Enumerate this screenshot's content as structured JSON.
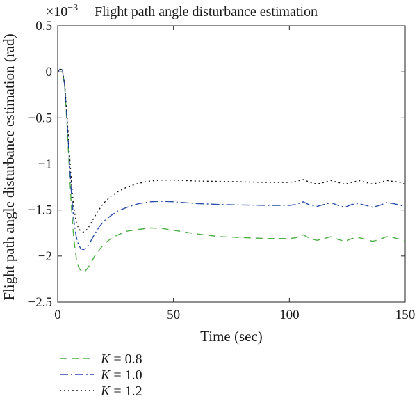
{
  "chart_data": {
    "type": "line",
    "title": "Flight path angle disturbance estimation",
    "exponent_label": "×10",
    "exponent_power": "−3",
    "xlabel": "Time (sec)",
    "ylabel": "Flight path angle disturbance estimation (rad)",
    "xlim": [
      0,
      150
    ],
    "ylim": [
      -2.5,
      0.5
    ],
    "xticks": [
      0,
      50,
      100,
      150
    ],
    "xtick_labels": [
      "0",
      "50",
      "100",
      "150"
    ],
    "yticks": [
      0.5,
      0,
      -0.5,
      -1,
      -1.5,
      -2,
      -2.5
    ],
    "ytick_labels": [
      "0.5",
      "0",
      "−0.5",
      "−1",
      "−1.5",
      "−2",
      "−2.5"
    ],
    "grid": false,
    "legend_position": "below",
    "series": [
      {
        "name": "K = 0.8",
        "legend_var": "K",
        "legend_value": "= 0.8",
        "color": "#4cae43",
        "dash": "10,7",
        "x": [
          0,
          1,
          2,
          3,
          4,
          5,
          6,
          7,
          8,
          9,
          10,
          11,
          12,
          13,
          14,
          16,
          18,
          20,
          23,
          26,
          30,
          35,
          40,
          45,
          50,
          55,
          60,
          70,
          80,
          90,
          100,
          103,
          106,
          109,
          112,
          115,
          118,
          121,
          124,
          127,
          130,
          133,
          136,
          139,
          142,
          145,
          148,
          150
        ],
        "y": [
          0,
          0.03,
          0.02,
          -0.15,
          -0.55,
          -1.05,
          -1.5,
          -1.82,
          -2.02,
          -2.12,
          -2.16,
          -2.17,
          -2.16,
          -2.13,
          -2.09,
          -2.0,
          -1.93,
          -1.87,
          -1.81,
          -1.77,
          -1.73,
          -1.71,
          -1.695,
          -1.7,
          -1.72,
          -1.74,
          -1.76,
          -1.79,
          -1.8,
          -1.81,
          -1.81,
          -1.8,
          -1.77,
          -1.81,
          -1.83,
          -1.81,
          -1.79,
          -1.82,
          -1.84,
          -1.81,
          -1.8,
          -1.82,
          -1.84,
          -1.82,
          -1.79,
          -1.8,
          -1.82,
          -1.84
        ]
      },
      {
        "name": "K = 1.0",
        "legend_var": "K",
        "legend_value": "= 1.0",
        "color": "#2b4da8",
        "dash": "12,4,2,4",
        "x": [
          0,
          1,
          2,
          3,
          4,
          5,
          6,
          7,
          8,
          9,
          10,
          11,
          12,
          13,
          14,
          16,
          18,
          20,
          23,
          26,
          30,
          35,
          40,
          45,
          50,
          55,
          60,
          70,
          80,
          90,
          100,
          103,
          106,
          109,
          112,
          115,
          118,
          121,
          124,
          127,
          130,
          133,
          136,
          139,
          142,
          145,
          148,
          150
        ],
        "y": [
          0,
          0.03,
          0.02,
          -0.14,
          -0.5,
          -0.95,
          -1.35,
          -1.62,
          -1.79,
          -1.88,
          -1.92,
          -1.93,
          -1.92,
          -1.89,
          -1.85,
          -1.76,
          -1.68,
          -1.62,
          -1.56,
          -1.51,
          -1.47,
          -1.43,
          -1.41,
          -1.405,
          -1.41,
          -1.42,
          -1.43,
          -1.44,
          -1.445,
          -1.45,
          -1.45,
          -1.44,
          -1.41,
          -1.45,
          -1.46,
          -1.44,
          -1.42,
          -1.45,
          -1.47,
          -1.44,
          -1.43,
          -1.45,
          -1.47,
          -1.45,
          -1.42,
          -1.43,
          -1.45,
          -1.46
        ]
      },
      {
        "name": "K = 1.2",
        "legend_var": "K",
        "legend_value": "= 1.2",
        "color": "#111111",
        "dash": "2,4",
        "x": [
          0,
          1,
          2,
          3,
          4,
          5,
          6,
          7,
          8,
          9,
          10,
          11,
          12,
          13,
          14,
          16,
          18,
          20,
          23,
          26,
          30,
          35,
          40,
          45,
          50,
          55,
          60,
          70,
          80,
          90,
          100,
          103,
          106,
          109,
          112,
          115,
          118,
          121,
          124,
          127,
          130,
          133,
          136,
          139,
          142,
          145,
          148,
          150
        ],
        "y": [
          0,
          0.03,
          0.02,
          -0.13,
          -0.45,
          -0.87,
          -1.23,
          -1.48,
          -1.63,
          -1.7,
          -1.73,
          -1.74,
          -1.73,
          -1.7,
          -1.66,
          -1.57,
          -1.49,
          -1.42,
          -1.35,
          -1.3,
          -1.25,
          -1.21,
          -1.185,
          -1.175,
          -1.175,
          -1.18,
          -1.185,
          -1.19,
          -1.195,
          -1.2,
          -1.2,
          -1.19,
          -1.17,
          -1.2,
          -1.22,
          -1.2,
          -1.18,
          -1.2,
          -1.22,
          -1.2,
          -1.18,
          -1.2,
          -1.22,
          -1.2,
          -1.18,
          -1.19,
          -1.2,
          -1.22
        ]
      }
    ]
  }
}
